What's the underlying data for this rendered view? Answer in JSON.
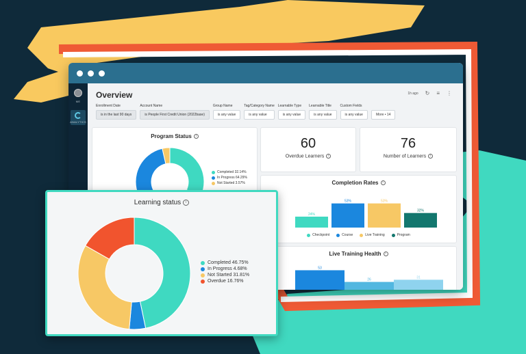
{
  "app": {
    "page_title": "Overview",
    "updated": "1h ago",
    "sidebar_user": "ME",
    "sidebar_app": "ANALYTICS"
  },
  "icons": {
    "refresh": "refresh-icon",
    "filter": "filter-icon",
    "more": "more-vertical-icon",
    "info": "info-icon"
  },
  "filters": [
    {
      "label": "Enrollment Date",
      "value": "is in the last 90 days"
    },
    {
      "label": "Account Name",
      "value": "is People First Credit Union (2022base)"
    },
    {
      "label": "Group Name",
      "value": "is any value"
    },
    {
      "label": "Tag/Category Name",
      "value": "is any value"
    },
    {
      "label": "Learnable Type",
      "value": "is any value"
    },
    {
      "label": "Learnable Title",
      "value": "is any value"
    },
    {
      "label": "Custom Fields",
      "value": "is any value"
    }
  ],
  "more_filters": "More • 14",
  "program_status": {
    "title": "Program Status",
    "legend": [
      "Completed 32.14%",
      "In Progress 64.29%",
      "Not Started 3.57%"
    ]
  },
  "kpis": [
    {
      "value": "60",
      "label": "Overdue Learners"
    },
    {
      "value": "76",
      "label": "Number of Learners"
    }
  ],
  "completion_rates": {
    "title": "Completion Rates",
    "bar_labels": [
      "24%",
      "53%",
      "53%",
      "32%"
    ],
    "legend": [
      "Checkpoint",
      "Course",
      "Live Training",
      "Program"
    ]
  },
  "live_training_health": {
    "title": "Live Training Health",
    "bar_labels": [
      "53",
      "26",
      "31"
    ]
  },
  "learning_status": {
    "title": "Learning status",
    "legend": [
      "Completed 46.75%",
      "In Progress 4.68%",
      "Not Started 31.81%",
      "Overdue 16.76%"
    ]
  },
  "colors": {
    "completed": "#3fd9c1",
    "in_progress": "#1b87de",
    "not_started": "#f7c865",
    "overdue": "#f1542e",
    "program": "#13776e",
    "window_bar": "#2b6f8f"
  },
  "chart_data": [
    {
      "type": "pie",
      "title": "Program Status",
      "categories": [
        "Completed",
        "In Progress",
        "Not Started"
      ],
      "values": [
        32.14,
        64.29,
        3.57
      ]
    },
    {
      "type": "bar",
      "title": "Completion Rates",
      "categories": [
        "Checkpoint",
        "Course",
        "Live Training",
        "Program"
      ],
      "values": [
        24,
        53,
        53,
        32
      ],
      "ylim": [
        0,
        60
      ]
    },
    {
      "type": "bar",
      "title": "Live Training Health",
      "categories": [
        "",
        "",
        ""
      ],
      "values": [
        53,
        26,
        31
      ],
      "ylim": [
        0,
        60
      ]
    },
    {
      "type": "pie",
      "title": "Learning status",
      "categories": [
        "Completed",
        "In Progress",
        "Not Started",
        "Overdue"
      ],
      "values": [
        46.75,
        4.68,
        31.81,
        16.76
      ]
    }
  ]
}
